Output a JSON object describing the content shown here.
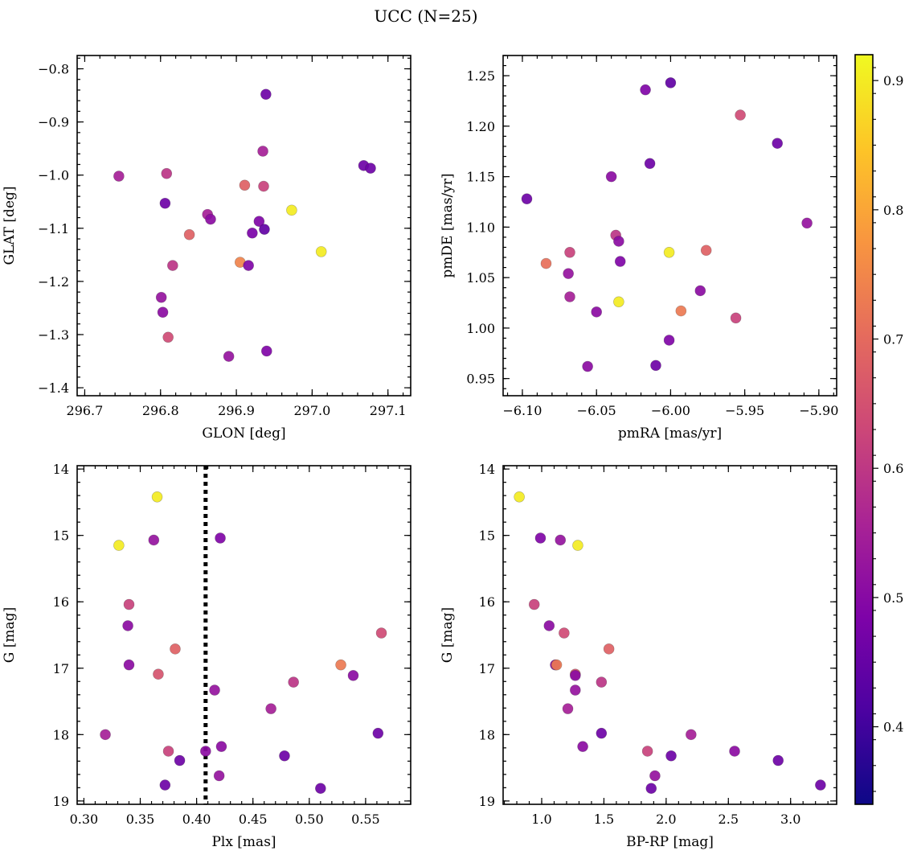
{
  "figure": {
    "title": "UCC (N=25)"
  },
  "colorbar": {
    "colormap": "plasma",
    "range": [
      0.34,
      0.92
    ],
    "ticks": [
      "0.4",
      "0.5",
      "0.6",
      "0.7",
      "0.8",
      "0.9"
    ]
  },
  "chart_data": [
    {
      "type": "scatter",
      "xlabel": "GLON [deg]",
      "ylabel": "GLAT [deg]",
      "xlim": [
        296.69,
        297.13
      ],
      "ylim": [
        -1.415,
        -0.775
      ],
      "y_inverted": false,
      "xticks": [
        "296.7",
        "296.8",
        "296.9",
        "297.0",
        "297.1"
      ],
      "yticks": [
        "−1.4",
        "−1.3",
        "−1.2",
        "−1.1",
        "−1.0",
        "−0.9",
        "−0.8"
      ],
      "points": [
        {
          "x": 296.745,
          "y": -1.002,
          "c": 0.5
        },
        {
          "x": 296.808,
          "y": -0.997,
          "c": 0.55
        },
        {
          "x": 296.806,
          "y": -1.053,
          "c": 0.4
        },
        {
          "x": 296.801,
          "y": -1.23,
          "c": 0.47
        },
        {
          "x": 296.803,
          "y": -1.258,
          "c": 0.45
        },
        {
          "x": 296.81,
          "y": -1.305,
          "c": 0.6
        },
        {
          "x": 296.816,
          "y": -1.17,
          "c": 0.55
        },
        {
          "x": 296.838,
          "y": -1.112,
          "c": 0.65
        },
        {
          "x": 296.862,
          "y": -1.074,
          "c": 0.5
        },
        {
          "x": 296.866,
          "y": -1.083,
          "c": 0.45
        },
        {
          "x": 296.89,
          "y": -1.341,
          "c": 0.47
        },
        {
          "x": 296.905,
          "y": -1.164,
          "c": 0.72
        },
        {
          "x": 296.911,
          "y": -1.019,
          "c": 0.65
        },
        {
          "x": 296.916,
          "y": -1.17,
          "c": 0.43
        },
        {
          "x": 296.921,
          "y": -1.109,
          "c": 0.42
        },
        {
          "x": 296.93,
          "y": -1.087,
          "c": 0.43
        },
        {
          "x": 296.935,
          "y": -0.955,
          "c": 0.5
        },
        {
          "x": 296.936,
          "y": -1.021,
          "c": 0.58
        },
        {
          "x": 296.937,
          "y": -1.102,
          "c": 0.38
        },
        {
          "x": 296.939,
          "y": -0.848,
          "c": 0.4
        },
        {
          "x": 296.94,
          "y": -1.331,
          "c": 0.43
        },
        {
          "x": 296.973,
          "y": -1.066,
          "c": 0.9
        },
        {
          "x": 297.012,
          "y": -1.144,
          "c": 0.9
        },
        {
          "x": 297.068,
          "y": -0.982,
          "c": 0.4
        },
        {
          "x": 297.077,
          "y": -0.987,
          "c": 0.4
        }
      ]
    },
    {
      "type": "scatter",
      "xlabel": "pmRA [mas/yr]",
      "ylabel": "pmDE [mas/yr]",
      "xlim": [
        -6.113,
        -5.888
      ],
      "ylim": [
        0.933,
        1.27
      ],
      "y_inverted": false,
      "xticks": [
        "−6.10",
        "−6.05",
        "−6.00",
        "−5.95",
        "−5.90"
      ],
      "yticks": [
        "0.95",
        "1.00",
        "1.05",
        "1.10",
        "1.15",
        "1.20",
        "1.25"
      ],
      "points": [
        {
          "x": -6.097,
          "y": 1.128,
          "c": 0.4
        },
        {
          "x": -6.084,
          "y": 1.064,
          "c": 0.68
        },
        {
          "x": -6.068,
          "y": 1.075,
          "c": 0.58
        },
        {
          "x": -6.069,
          "y": 1.054,
          "c": 0.47
        },
        {
          "x": -6.068,
          "y": 1.031,
          "c": 0.5
        },
        {
          "x": -6.056,
          "y": 0.962,
          "c": 0.45
        },
        {
          "x": -6.05,
          "y": 1.016,
          "c": 0.45
        },
        {
          "x": -6.04,
          "y": 1.15,
          "c": 0.45
        },
        {
          "x": -6.037,
          "y": 1.092,
          "c": 0.55
        },
        {
          "x": -6.035,
          "y": 1.086,
          "c": 0.45
        },
        {
          "x": -6.035,
          "y": 1.026,
          "c": 0.9
        },
        {
          "x": -6.034,
          "y": 1.066,
          "c": 0.43
        },
        {
          "x": -6.017,
          "y": 1.236,
          "c": 0.43
        },
        {
          "x": -6.014,
          "y": 1.163,
          "c": 0.4
        },
        {
          "x": -6.01,
          "y": 0.963,
          "c": 0.4
        },
        {
          "x": -6.001,
          "y": 1.075,
          "c": 0.9
        },
        {
          "x": -6.0,
          "y": 1.243,
          "c": 0.38
        },
        {
          "x": -6.001,
          "y": 0.988,
          "c": 0.43
        },
        {
          "x": -5.993,
          "y": 1.017,
          "c": 0.7
        },
        {
          "x": -5.98,
          "y": 1.037,
          "c": 0.45
        },
        {
          "x": -5.976,
          "y": 1.077,
          "c": 0.65
        },
        {
          "x": -5.956,
          "y": 1.01,
          "c": 0.58
        },
        {
          "x": -5.953,
          "y": 1.211,
          "c": 0.6
        },
        {
          "x": -5.928,
          "y": 1.183,
          "c": 0.4
        },
        {
          "x": -5.908,
          "y": 1.104,
          "c": 0.47
        }
      ]
    },
    {
      "type": "scatter",
      "xlabel": "Plx [mas]",
      "ylabel": "G [mag]",
      "xlim": [
        0.294,
        0.59
      ],
      "ylim": [
        13.95,
        19.05
      ],
      "y_inverted": true,
      "vline": {
        "x": 0.408,
        "style": "dotted"
      },
      "xticks": [
        "0.30",
        "0.35",
        "0.40",
        "0.45",
        "0.50",
        "0.55"
      ],
      "yticks": [
        "14",
        "15",
        "16",
        "17",
        "18",
        "19"
      ],
      "points": [
        {
          "x": 0.365,
          "y": 14.42,
          "c": 0.9
        },
        {
          "x": 0.331,
          "y": 15.15,
          "c": 0.9
        },
        {
          "x": 0.362,
          "y": 15.07,
          "c": 0.47
        },
        {
          "x": 0.421,
          "y": 15.04,
          "c": 0.43
        },
        {
          "x": 0.34,
          "y": 16.04,
          "c": 0.58
        },
        {
          "x": 0.339,
          "y": 16.36,
          "c": 0.45
        },
        {
          "x": 0.381,
          "y": 16.71,
          "c": 0.65
        },
        {
          "x": 0.564,
          "y": 16.47,
          "c": 0.6
        },
        {
          "x": 0.34,
          "y": 16.95,
          "c": 0.45
        },
        {
          "x": 0.366,
          "y": 17.09,
          "c": 0.62
        },
        {
          "x": 0.528,
          "y": 16.95,
          "c": 0.7
        },
        {
          "x": 0.539,
          "y": 17.11,
          "c": 0.45
        },
        {
          "x": 0.416,
          "y": 17.33,
          "c": 0.47
        },
        {
          "x": 0.486,
          "y": 17.21,
          "c": 0.55
        },
        {
          "x": 0.466,
          "y": 17.61,
          "c": 0.5
        },
        {
          "x": 0.319,
          "y": 18.0,
          "c": 0.5
        },
        {
          "x": 0.561,
          "y": 17.98,
          "c": 0.4
        },
        {
          "x": 0.375,
          "y": 18.25,
          "c": 0.58
        },
        {
          "x": 0.385,
          "y": 18.39,
          "c": 0.4
        },
        {
          "x": 0.408,
          "y": 18.25,
          "c": 0.45
        },
        {
          "x": 0.422,
          "y": 18.18,
          "c": 0.45
        },
        {
          "x": 0.478,
          "y": 18.32,
          "c": 0.4
        },
        {
          "x": 0.42,
          "y": 18.62,
          "c": 0.47
        },
        {
          "x": 0.372,
          "y": 18.76,
          "c": 0.4
        },
        {
          "x": 0.51,
          "y": 18.81,
          "c": 0.4
        }
      ]
    },
    {
      "type": "scatter",
      "xlabel": "BP-RP [mag]",
      "ylabel": "G [mag]",
      "xlim": [
        0.69,
        3.37
      ],
      "ylim": [
        13.95,
        19.05
      ],
      "y_inverted": true,
      "xticks": [
        "1.0",
        "1.5",
        "2.0",
        "2.5",
        "3.0"
      ],
      "yticks": [
        "14",
        "15",
        "16",
        "17",
        "18",
        "19"
      ],
      "points": [
        {
          "x": 0.82,
          "y": 14.42,
          "c": 0.9
        },
        {
          "x": 0.99,
          "y": 15.04,
          "c": 0.43
        },
        {
          "x": 1.15,
          "y": 15.07,
          "c": 0.47
        },
        {
          "x": 1.29,
          "y": 15.15,
          "c": 0.9
        },
        {
          "x": 0.94,
          "y": 16.04,
          "c": 0.58
        },
        {
          "x": 1.06,
          "y": 16.36,
          "c": 0.45
        },
        {
          "x": 1.18,
          "y": 16.47,
          "c": 0.6
        },
        {
          "x": 1.54,
          "y": 16.71,
          "c": 0.65
        },
        {
          "x": 1.11,
          "y": 16.95,
          "c": 0.45
        },
        {
          "x": 1.12,
          "y": 16.95,
          "c": 0.7
        },
        {
          "x": 1.27,
          "y": 17.09,
          "c": 0.62
        },
        {
          "x": 1.27,
          "y": 17.11,
          "c": 0.45
        },
        {
          "x": 1.48,
          "y": 17.21,
          "c": 0.55
        },
        {
          "x": 1.27,
          "y": 17.33,
          "c": 0.47
        },
        {
          "x": 1.21,
          "y": 17.61,
          "c": 0.5
        },
        {
          "x": 1.48,
          "y": 17.98,
          "c": 0.4
        },
        {
          "x": 2.2,
          "y": 18.0,
          "c": 0.5
        },
        {
          "x": 1.33,
          "y": 18.18,
          "c": 0.45
        },
        {
          "x": 1.85,
          "y": 18.25,
          "c": 0.58
        },
        {
          "x": 2.55,
          "y": 18.25,
          "c": 0.45
        },
        {
          "x": 2.04,
          "y": 18.32,
          "c": 0.4
        },
        {
          "x": 2.9,
          "y": 18.39,
          "c": 0.4
        },
        {
          "x": 1.91,
          "y": 18.62,
          "c": 0.47
        },
        {
          "x": 3.24,
          "y": 18.76,
          "c": 0.4
        },
        {
          "x": 1.88,
          "y": 18.81,
          "c": 0.4
        }
      ]
    }
  ]
}
